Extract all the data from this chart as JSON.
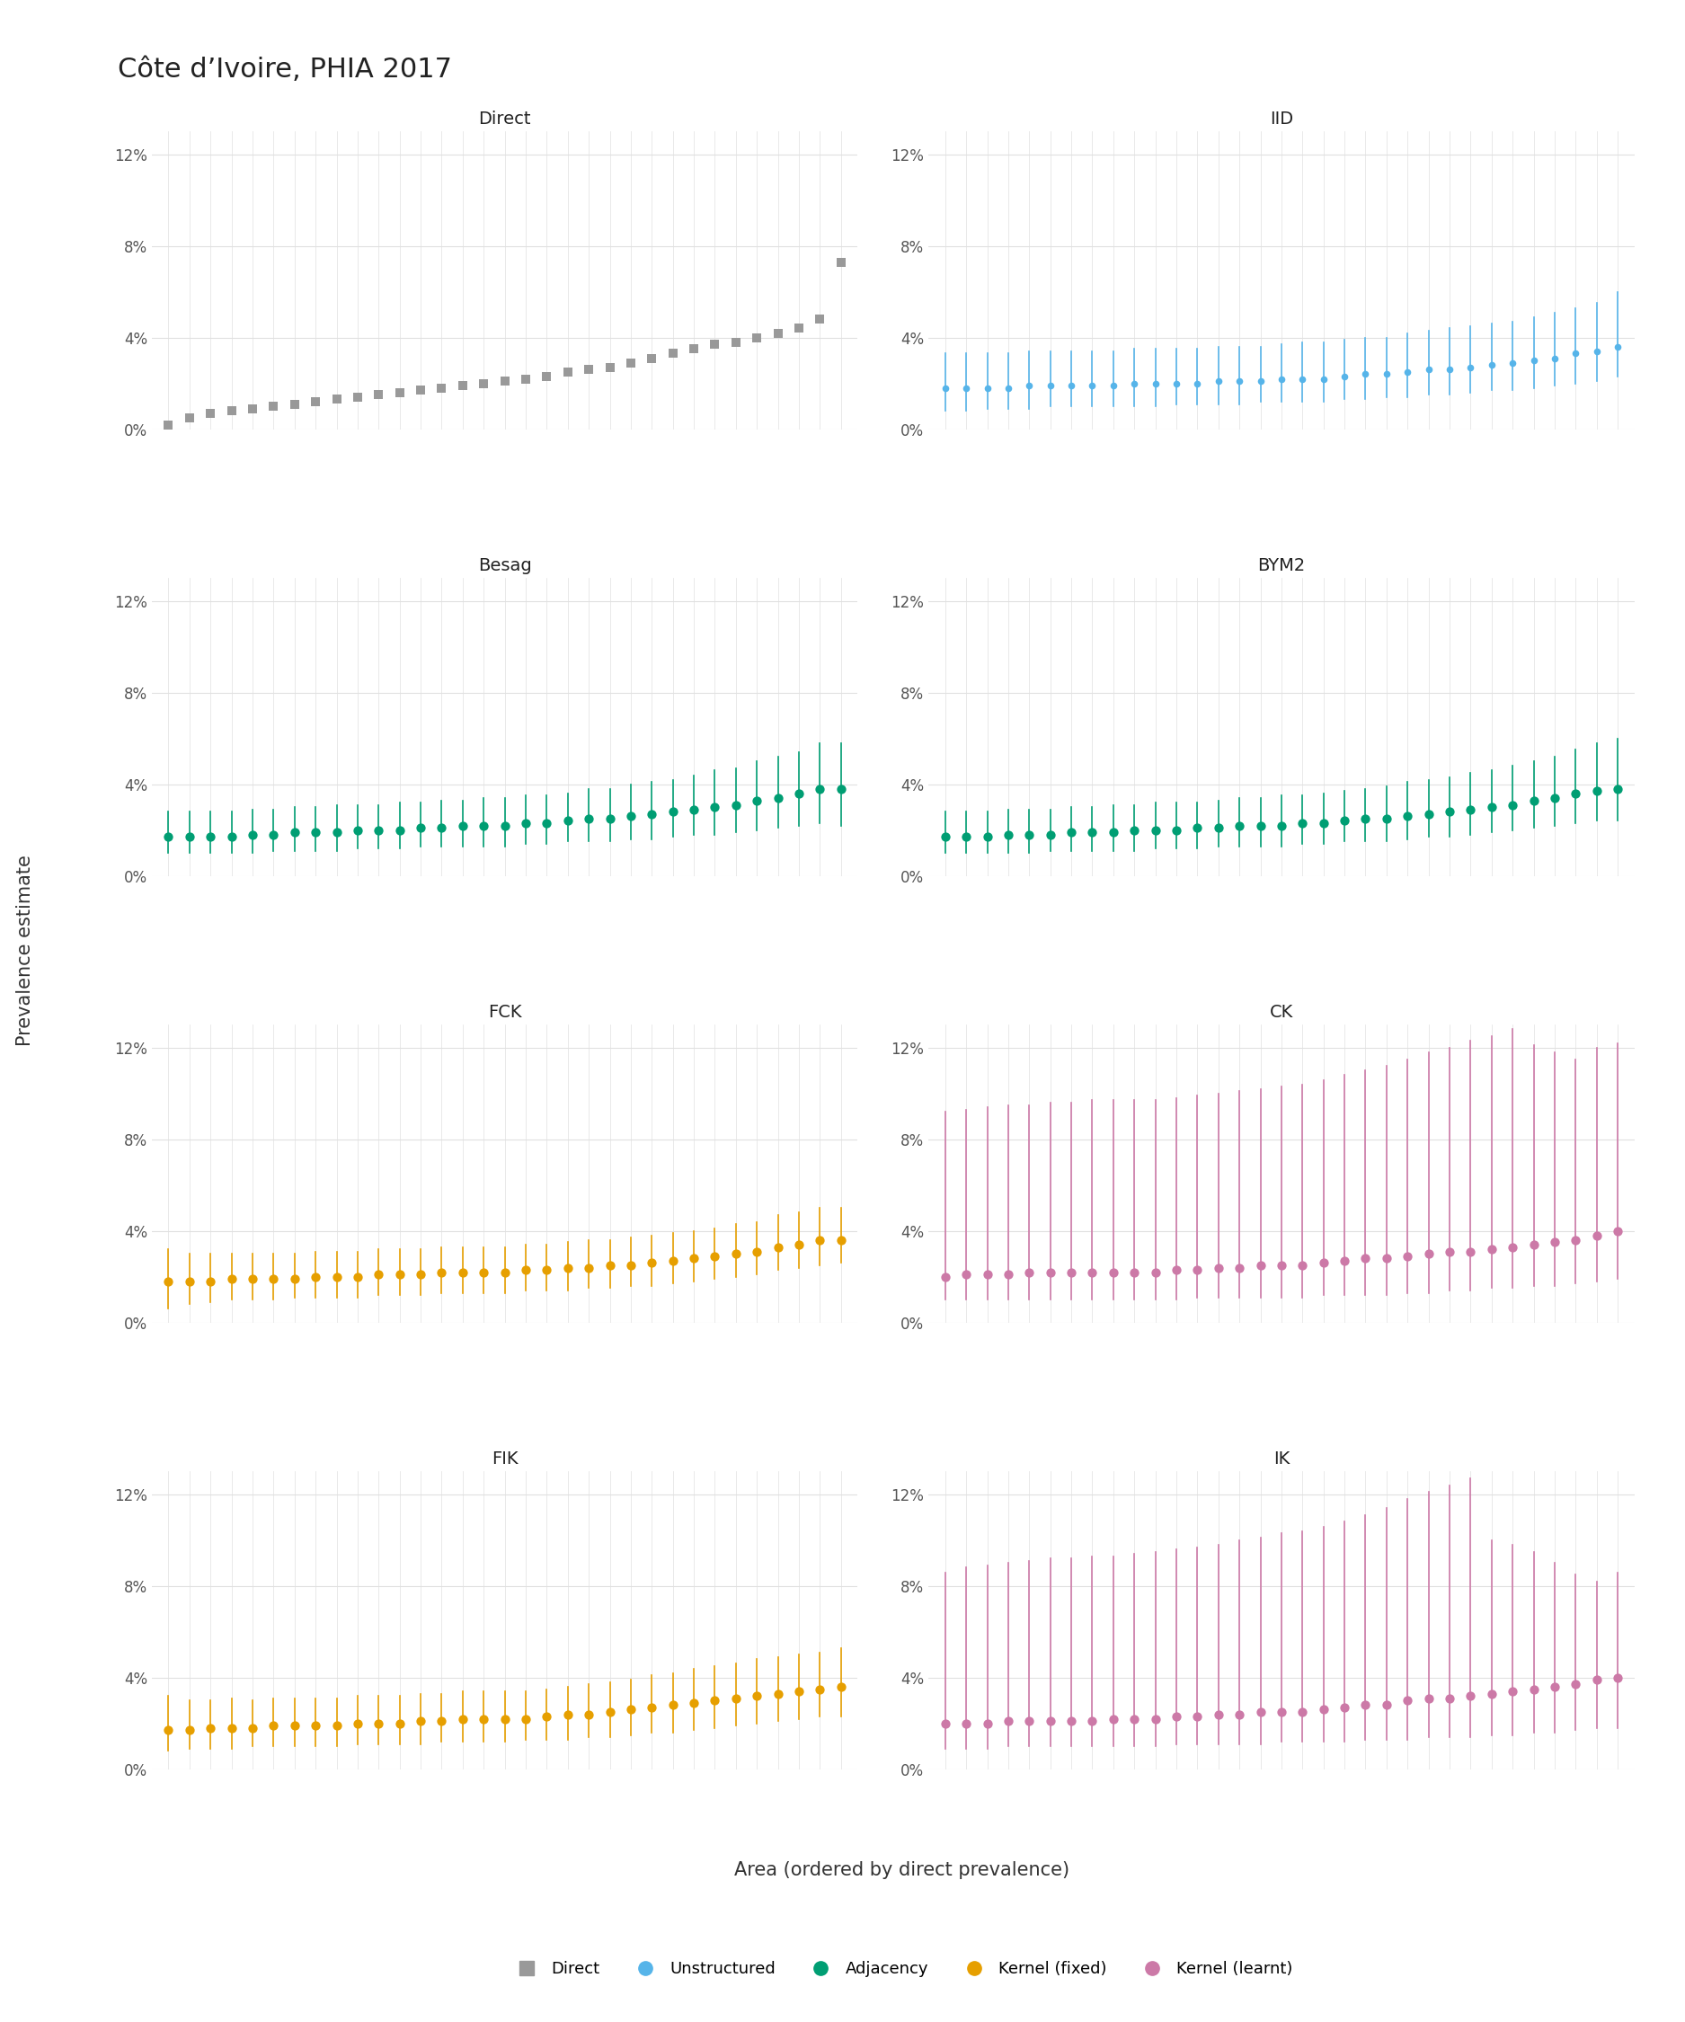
{
  "title": "Côte d’Ivoire, PHIA 2017",
  "xlabel": "Area (ordered by direct prevalence)",
  "ylabel": "Prevalence estimate",
  "n_areas": 33,
  "ylim": [
    0,
    0.13
  ],
  "yticks": [
    0,
    0.04,
    0.08,
    0.12
  ],
  "yticklabels": [
    "0%",
    "4%",
    "8%",
    "12%"
  ],
  "panel_bg": "#ffffff",
  "fig_bg": "#ffffff",
  "grid_color": "#e0e0e0",
  "colors": {
    "direct": "#999999",
    "iid": "#56B4E9",
    "besag": "#009E73",
    "bym2": "#009E73",
    "fck": "#E69F00",
    "ck": "#CC79A7",
    "fik": "#E69F00",
    "ik": "#CC79A7"
  },
  "panel_titles": [
    "Direct",
    "IID",
    "Besag",
    "BYM2",
    "FCK",
    "CK",
    "FIK",
    "IK"
  ],
  "legend_items": [
    {
      "label": "Direct",
      "color": "#999999",
      "marker": "s"
    },
    {
      "label": "Unstructured",
      "color": "#56B4E9",
      "marker": "o"
    },
    {
      "label": "Adjacency",
      "color": "#009E73",
      "marker": "o"
    },
    {
      "label": "Kernel (fixed)",
      "color": "#E69F00",
      "marker": "o"
    },
    {
      "label": "Kernel (learnt)",
      "color": "#CC79A7",
      "marker": "o"
    }
  ],
  "direct_means": [
    0.002,
    0.005,
    0.007,
    0.008,
    0.009,
    0.01,
    0.011,
    0.012,
    0.013,
    0.014,
    0.015,
    0.016,
    0.017,
    0.018,
    0.019,
    0.02,
    0.021,
    0.022,
    0.023,
    0.025,
    0.026,
    0.027,
    0.029,
    0.031,
    0.033,
    0.035,
    0.037,
    0.038,
    0.04,
    0.042,
    0.044,
    0.048,
    0.073
  ],
  "iid_means": [
    0.018,
    0.018,
    0.018,
    0.018,
    0.019,
    0.019,
    0.019,
    0.019,
    0.019,
    0.02,
    0.02,
    0.02,
    0.02,
    0.021,
    0.021,
    0.021,
    0.022,
    0.022,
    0.022,
    0.023,
    0.024,
    0.024,
    0.025,
    0.026,
    0.026,
    0.027,
    0.028,
    0.029,
    0.03,
    0.031,
    0.033,
    0.034,
    0.036
  ],
  "iid_lower": [
    0.008,
    0.008,
    0.009,
    0.009,
    0.009,
    0.01,
    0.01,
    0.01,
    0.01,
    0.01,
    0.01,
    0.011,
    0.011,
    0.011,
    0.011,
    0.012,
    0.012,
    0.012,
    0.012,
    0.013,
    0.013,
    0.014,
    0.014,
    0.015,
    0.015,
    0.016,
    0.017,
    0.017,
    0.018,
    0.019,
    0.02,
    0.021,
    0.023
  ],
  "iid_upper": [
    0.033,
    0.033,
    0.033,
    0.033,
    0.034,
    0.034,
    0.034,
    0.034,
    0.034,
    0.035,
    0.035,
    0.035,
    0.035,
    0.036,
    0.036,
    0.036,
    0.037,
    0.038,
    0.038,
    0.039,
    0.04,
    0.04,
    0.042,
    0.043,
    0.044,
    0.045,
    0.046,
    0.047,
    0.049,
    0.051,
    0.053,
    0.055,
    0.06
  ],
  "besag_means": [
    0.017,
    0.017,
    0.017,
    0.017,
    0.018,
    0.018,
    0.019,
    0.019,
    0.019,
    0.02,
    0.02,
    0.02,
    0.021,
    0.021,
    0.022,
    0.022,
    0.022,
    0.023,
    0.023,
    0.024,
    0.025,
    0.025,
    0.026,
    0.027,
    0.028,
    0.029,
    0.03,
    0.031,
    0.033,
    0.034,
    0.036,
    0.038,
    0.038
  ],
  "besag_lower": [
    0.01,
    0.01,
    0.01,
    0.01,
    0.01,
    0.011,
    0.011,
    0.011,
    0.011,
    0.012,
    0.012,
    0.012,
    0.013,
    0.013,
    0.013,
    0.013,
    0.013,
    0.014,
    0.014,
    0.015,
    0.015,
    0.015,
    0.016,
    0.016,
    0.017,
    0.018,
    0.018,
    0.019,
    0.02,
    0.021,
    0.022,
    0.023,
    0.022
  ],
  "besag_upper": [
    0.028,
    0.028,
    0.028,
    0.028,
    0.029,
    0.029,
    0.03,
    0.03,
    0.031,
    0.031,
    0.031,
    0.032,
    0.032,
    0.033,
    0.033,
    0.034,
    0.034,
    0.035,
    0.035,
    0.036,
    0.038,
    0.038,
    0.04,
    0.041,
    0.042,
    0.044,
    0.046,
    0.047,
    0.05,
    0.052,
    0.054,
    0.058,
    0.058
  ],
  "bym2_means": [
    0.017,
    0.017,
    0.017,
    0.018,
    0.018,
    0.018,
    0.019,
    0.019,
    0.019,
    0.02,
    0.02,
    0.02,
    0.021,
    0.021,
    0.022,
    0.022,
    0.022,
    0.023,
    0.023,
    0.024,
    0.025,
    0.025,
    0.026,
    0.027,
    0.028,
    0.029,
    0.03,
    0.031,
    0.033,
    0.034,
    0.036,
    0.037,
    0.038
  ],
  "bym2_lower": [
    0.01,
    0.01,
    0.01,
    0.01,
    0.01,
    0.011,
    0.011,
    0.011,
    0.011,
    0.011,
    0.012,
    0.012,
    0.012,
    0.013,
    0.013,
    0.013,
    0.013,
    0.014,
    0.014,
    0.015,
    0.015,
    0.015,
    0.016,
    0.017,
    0.017,
    0.018,
    0.019,
    0.02,
    0.021,
    0.022,
    0.023,
    0.024,
    0.024
  ],
  "bym2_upper": [
    0.028,
    0.028,
    0.028,
    0.029,
    0.029,
    0.029,
    0.03,
    0.03,
    0.031,
    0.031,
    0.032,
    0.032,
    0.032,
    0.033,
    0.034,
    0.034,
    0.035,
    0.035,
    0.036,
    0.037,
    0.038,
    0.039,
    0.041,
    0.042,
    0.043,
    0.045,
    0.046,
    0.048,
    0.05,
    0.052,
    0.055,
    0.058,
    0.06
  ],
  "fck_means": [
    0.018,
    0.018,
    0.018,
    0.019,
    0.019,
    0.019,
    0.019,
    0.02,
    0.02,
    0.02,
    0.021,
    0.021,
    0.021,
    0.022,
    0.022,
    0.022,
    0.022,
    0.023,
    0.023,
    0.024,
    0.024,
    0.025,
    0.025,
    0.026,
    0.027,
    0.028,
    0.029,
    0.03,
    0.031,
    0.033,
    0.034,
    0.036,
    0.036
  ],
  "fck_lower": [
    0.006,
    0.008,
    0.009,
    0.01,
    0.01,
    0.01,
    0.011,
    0.011,
    0.011,
    0.011,
    0.012,
    0.012,
    0.012,
    0.013,
    0.013,
    0.013,
    0.013,
    0.014,
    0.014,
    0.014,
    0.015,
    0.015,
    0.016,
    0.016,
    0.017,
    0.018,
    0.019,
    0.02,
    0.021,
    0.023,
    0.024,
    0.025,
    0.026
  ],
  "fck_upper": [
    0.032,
    0.03,
    0.03,
    0.03,
    0.03,
    0.03,
    0.03,
    0.031,
    0.031,
    0.031,
    0.032,
    0.032,
    0.032,
    0.033,
    0.033,
    0.033,
    0.033,
    0.034,
    0.034,
    0.035,
    0.036,
    0.036,
    0.037,
    0.038,
    0.039,
    0.04,
    0.041,
    0.043,
    0.044,
    0.047,
    0.048,
    0.05,
    0.05
  ],
  "ck_means": [
    0.02,
    0.021,
    0.021,
    0.021,
    0.022,
    0.022,
    0.022,
    0.022,
    0.022,
    0.022,
    0.022,
    0.023,
    0.023,
    0.024,
    0.024,
    0.025,
    0.025,
    0.025,
    0.026,
    0.027,
    0.028,
    0.028,
    0.029,
    0.03,
    0.031,
    0.031,
    0.032,
    0.033,
    0.034,
    0.035,
    0.036,
    0.038,
    0.04
  ],
  "ck_lower": [
    0.01,
    0.01,
    0.01,
    0.01,
    0.01,
    0.01,
    0.01,
    0.01,
    0.01,
    0.01,
    0.01,
    0.01,
    0.011,
    0.011,
    0.011,
    0.011,
    0.011,
    0.011,
    0.012,
    0.012,
    0.012,
    0.012,
    0.013,
    0.013,
    0.014,
    0.014,
    0.015,
    0.015,
    0.016,
    0.016,
    0.017,
    0.018,
    0.019
  ],
  "ck_upper": [
    0.092,
    0.093,
    0.094,
    0.095,
    0.095,
    0.096,
    0.096,
    0.097,
    0.097,
    0.097,
    0.097,
    0.098,
    0.099,
    0.1,
    0.101,
    0.102,
    0.103,
    0.104,
    0.106,
    0.108,
    0.11,
    0.112,
    0.115,
    0.118,
    0.12,
    0.123,
    0.125,
    0.128,
    0.121,
    0.118,
    0.115,
    0.12,
    0.122
  ],
  "fik_means": [
    0.017,
    0.017,
    0.018,
    0.018,
    0.018,
    0.019,
    0.019,
    0.019,
    0.019,
    0.02,
    0.02,
    0.02,
    0.021,
    0.021,
    0.022,
    0.022,
    0.022,
    0.022,
    0.023,
    0.024,
    0.024,
    0.025,
    0.026,
    0.027,
    0.028,
    0.029,
    0.03,
    0.031,
    0.032,
    0.033,
    0.034,
    0.035,
    0.036
  ],
  "fik_lower": [
    0.008,
    0.009,
    0.009,
    0.009,
    0.01,
    0.01,
    0.01,
    0.01,
    0.01,
    0.011,
    0.011,
    0.011,
    0.011,
    0.012,
    0.012,
    0.012,
    0.012,
    0.013,
    0.013,
    0.013,
    0.014,
    0.014,
    0.015,
    0.016,
    0.016,
    0.017,
    0.018,
    0.019,
    0.02,
    0.021,
    0.022,
    0.023,
    0.023
  ],
  "fik_upper": [
    0.032,
    0.03,
    0.03,
    0.031,
    0.03,
    0.031,
    0.031,
    0.031,
    0.031,
    0.032,
    0.032,
    0.032,
    0.033,
    0.033,
    0.034,
    0.034,
    0.034,
    0.034,
    0.035,
    0.036,
    0.037,
    0.038,
    0.039,
    0.041,
    0.042,
    0.044,
    0.045,
    0.046,
    0.048,
    0.049,
    0.05,
    0.051,
    0.053
  ],
  "ik_means": [
    0.02,
    0.02,
    0.02,
    0.021,
    0.021,
    0.021,
    0.021,
    0.021,
    0.022,
    0.022,
    0.022,
    0.023,
    0.023,
    0.024,
    0.024,
    0.025,
    0.025,
    0.025,
    0.026,
    0.027,
    0.028,
    0.028,
    0.03,
    0.031,
    0.031,
    0.032,
    0.033,
    0.034,
    0.035,
    0.036,
    0.037,
    0.039,
    0.04
  ],
  "ik_lower": [
    0.009,
    0.009,
    0.009,
    0.01,
    0.01,
    0.01,
    0.01,
    0.01,
    0.01,
    0.01,
    0.01,
    0.011,
    0.011,
    0.011,
    0.011,
    0.011,
    0.012,
    0.012,
    0.012,
    0.012,
    0.013,
    0.013,
    0.013,
    0.014,
    0.014,
    0.014,
    0.015,
    0.015,
    0.016,
    0.016,
    0.017,
    0.018,
    0.018
  ],
  "ik_upper": [
    0.086,
    0.088,
    0.089,
    0.09,
    0.091,
    0.092,
    0.092,
    0.093,
    0.093,
    0.094,
    0.095,
    0.096,
    0.097,
    0.098,
    0.1,
    0.101,
    0.103,
    0.104,
    0.106,
    0.108,
    0.111,
    0.114,
    0.118,
    0.121,
    0.124,
    0.127,
    0.1,
    0.098,
    0.095,
    0.09,
    0.085,
    0.082,
    0.086
  ]
}
